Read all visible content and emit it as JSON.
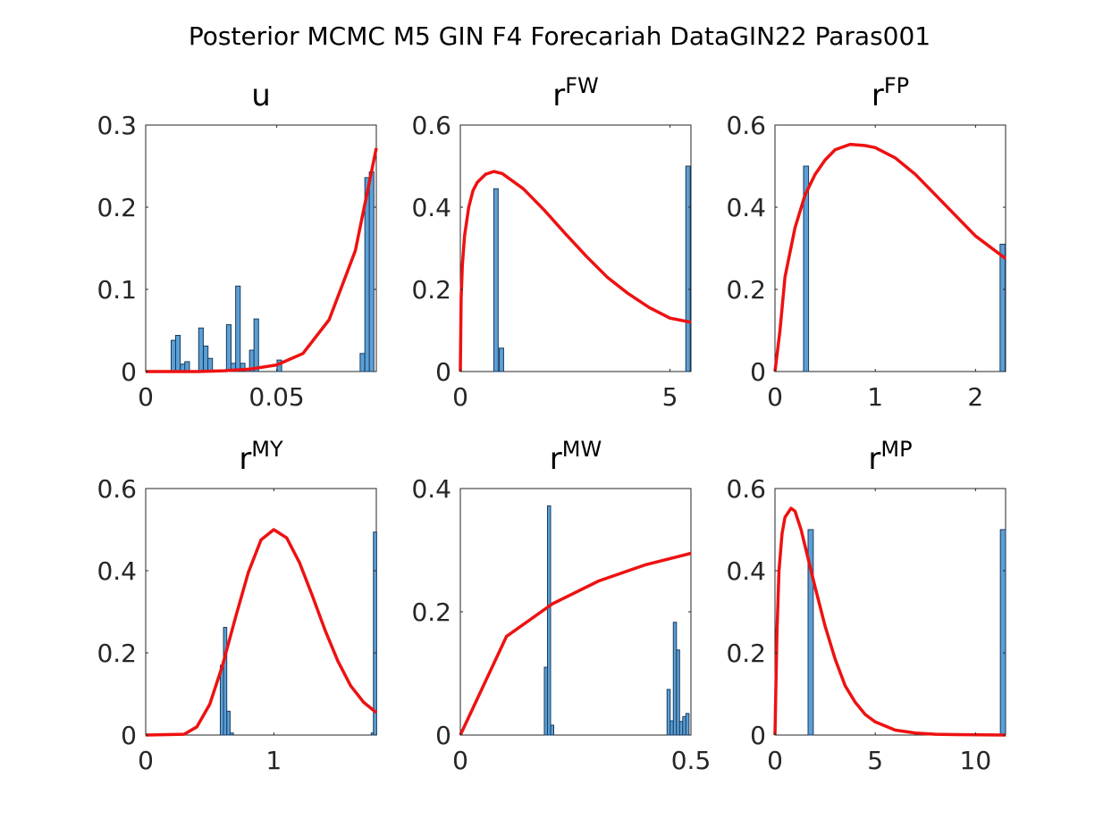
{
  "figure_title": "Posterior MCMC M5 GIN F4 Forecariah DataGIN22 Paras001",
  "colors": {
    "bars": "#5aa0d6",
    "bar_edge": "#1b3a5c",
    "curve": "#ee1111",
    "axis": "#262626"
  },
  "chart_data": [
    {
      "type": "bar",
      "title": "u",
      "title_sup": "",
      "xlim": [
        0,
        0.088
      ],
      "ylim": [
        0,
        0.3
      ],
      "xticks": [
        {
          "v": 0,
          "label": "0"
        },
        {
          "v": 0.05,
          "label": "0.05"
        }
      ],
      "yticks": [
        {
          "v": 0,
          "label": "0"
        },
        {
          "v": 0.1,
          "label": "0.1"
        },
        {
          "v": 0.2,
          "label": "0.2"
        },
        {
          "v": 0.3,
          "label": "0.3"
        }
      ],
      "bin_width": 0.00176,
      "bars": [
        {
          "x": 0.0106,
          "y": 0.038
        },
        {
          "x": 0.0123,
          "y": 0.044
        },
        {
          "x": 0.0141,
          "y": 0.009
        },
        {
          "x": 0.0158,
          "y": 0.012
        },
        {
          "x": 0.0211,
          "y": 0.053
        },
        {
          "x": 0.0229,
          "y": 0.031
        },
        {
          "x": 0.0246,
          "y": 0.016
        },
        {
          "x": 0.0317,
          "y": 0.057
        },
        {
          "x": 0.0334,
          "y": 0.01
        },
        {
          "x": 0.0352,
          "y": 0.104
        },
        {
          "x": 0.037,
          "y": 0.01
        },
        {
          "x": 0.0405,
          "y": 0.026
        },
        {
          "x": 0.0422,
          "y": 0.064
        },
        {
          "x": 0.051,
          "y": 0.014
        },
        {
          "x": 0.0827,
          "y": 0.022
        },
        {
          "x": 0.0845,
          "y": 0.236
        },
        {
          "x": 0.0862,
          "y": 0.243
        }
      ],
      "curve": [
        [
          0,
          0
        ],
        [
          0.02,
          0
        ],
        [
          0.03,
          0.001
        ],
        [
          0.04,
          0.003
        ],
        [
          0.05,
          0.008
        ],
        [
          0.06,
          0.022
        ],
        [
          0.07,
          0.063
        ],
        [
          0.08,
          0.147
        ],
        [
          0.088,
          0.272
        ]
      ]
    },
    {
      "type": "bar",
      "title": "r",
      "title_sup": "FW",
      "xlim": [
        0,
        5.5
      ],
      "ylim": [
        0,
        0.6
      ],
      "xticks": [
        {
          "v": 0,
          "label": "0"
        },
        {
          "v": 5,
          "label": "5"
        }
      ],
      "yticks": [
        {
          "v": 0,
          "label": "0"
        },
        {
          "v": 0.2,
          "label": "0.2"
        },
        {
          "v": 0.4,
          "label": "0.4"
        },
        {
          "v": 0.6,
          "label": "0.6"
        }
      ],
      "bin_width": 0.105,
      "bars": [
        {
          "x": 0.85,
          "y": 0.445
        },
        {
          "x": 0.98,
          "y": 0.057
        },
        {
          "x": 5.43,
          "y": 0.5
        }
      ],
      "curve": [
        [
          0,
          0
        ],
        [
          0.02,
          0.18
        ],
        [
          0.05,
          0.26
        ],
        [
          0.1,
          0.33
        ],
        [
          0.2,
          0.4
        ],
        [
          0.3,
          0.44
        ],
        [
          0.4,
          0.46
        ],
        [
          0.6,
          0.48
        ],
        [
          0.8,
          0.487
        ],
        [
          1.0,
          0.482
        ],
        [
          1.5,
          0.445
        ],
        [
          2.0,
          0.393
        ],
        [
          2.5,
          0.336
        ],
        [
          3.0,
          0.281
        ],
        [
          3.5,
          0.23
        ],
        [
          4.0,
          0.19
        ],
        [
          4.5,
          0.156
        ],
        [
          5.0,
          0.13
        ],
        [
          5.5,
          0.12
        ]
      ]
    },
    {
      "type": "bar",
      "title": "r",
      "title_sup": "FP",
      "xlim": [
        0,
        2.3
      ],
      "ylim": [
        0,
        0.6
      ],
      "xticks": [
        {
          "v": 0,
          "label": "0"
        },
        {
          "v": 1,
          "label": "1"
        },
        {
          "v": 2,
          "label": "2"
        }
      ],
      "yticks": [
        {
          "v": 0,
          "label": "0"
        },
        {
          "v": 0.2,
          "label": "0.2"
        },
        {
          "v": 0.4,
          "label": "0.4"
        },
        {
          "v": 0.6,
          "label": "0.6"
        }
      ],
      "bin_width": 0.05,
      "bars": [
        {
          "x": 0.31,
          "y": 0.5
        },
        {
          "x": 2.27,
          "y": 0.31
        }
      ],
      "curve": [
        [
          0,
          0
        ],
        [
          0.05,
          0.1
        ],
        [
          0.1,
          0.23
        ],
        [
          0.2,
          0.35
        ],
        [
          0.3,
          0.43
        ],
        [
          0.4,
          0.48
        ],
        [
          0.5,
          0.515
        ],
        [
          0.6,
          0.54
        ],
        [
          0.75,
          0.553
        ],
        [
          0.9,
          0.55
        ],
        [
          1.0,
          0.545
        ],
        [
          1.2,
          0.52
        ],
        [
          1.4,
          0.48
        ],
        [
          1.6,
          0.43
        ],
        [
          1.8,
          0.38
        ],
        [
          2.0,
          0.33
        ],
        [
          2.3,
          0.275
        ]
      ]
    },
    {
      "type": "bar",
      "title": "r",
      "title_sup": "MY",
      "xlim": [
        0,
        1.8
      ],
      "ylim": [
        0,
        0.6
      ],
      "xticks": [
        {
          "v": 0,
          "label": "0"
        },
        {
          "v": 1,
          "label": "1"
        }
      ],
      "yticks": [
        {
          "v": 0,
          "label": "0"
        },
        {
          "v": 0.2,
          "label": "0.2"
        },
        {
          "v": 0.4,
          "label": "0.4"
        },
        {
          "v": 0.6,
          "label": "0.6"
        }
      ],
      "bin_width": 0.0255,
      "bars": [
        {
          "x": 0.595,
          "y": 0.17
        },
        {
          "x": 0.62,
          "y": 0.262
        },
        {
          "x": 0.646,
          "y": 0.058
        },
        {
          "x": 0.672,
          "y": 0.005
        },
        {
          "x": 1.773,
          "y": 0.005
        },
        {
          "x": 1.79,
          "y": 0.494
        }
      ],
      "curve": [
        [
          0,
          0
        ],
        [
          0.3,
          0.002
        ],
        [
          0.4,
          0.02
        ],
        [
          0.5,
          0.075
        ],
        [
          0.6,
          0.17
        ],
        [
          0.7,
          0.285
        ],
        [
          0.8,
          0.395
        ],
        [
          0.9,
          0.475
        ],
        [
          1.0,
          0.5
        ],
        [
          1.1,
          0.48
        ],
        [
          1.2,
          0.42
        ],
        [
          1.3,
          0.34
        ],
        [
          1.4,
          0.255
        ],
        [
          1.5,
          0.18
        ],
        [
          1.6,
          0.12
        ],
        [
          1.7,
          0.08
        ],
        [
          1.8,
          0.055
        ]
      ]
    },
    {
      "type": "bar",
      "title": "r",
      "title_sup": "MW",
      "xlim": [
        0,
        0.5
      ],
      "ylim": [
        0,
        0.4
      ],
      "xticks": [
        {
          "v": 0,
          "label": "0"
        },
        {
          "v": 0.5,
          "label": "0.5"
        }
      ],
      "yticks": [
        {
          "v": 0,
          "label": "0"
        },
        {
          "v": 0.2,
          "label": "0.2"
        },
        {
          "v": 0.4,
          "label": "0.4"
        }
      ],
      "bin_width": 0.0068,
      "bars": [
        {
          "x": 0.1855,
          "y": 0.11
        },
        {
          "x": 0.1923,
          "y": 0.372
        },
        {
          "x": 0.1991,
          "y": 0.016
        },
        {
          "x": 0.4516,
          "y": 0.074
        },
        {
          "x": 0.4584,
          "y": 0.023
        },
        {
          "x": 0.4652,
          "y": 0.183
        },
        {
          "x": 0.472,
          "y": 0.138
        },
        {
          "x": 0.4788,
          "y": 0.022
        },
        {
          "x": 0.4856,
          "y": 0.03
        },
        {
          "x": 0.4924,
          "y": 0.035
        }
      ],
      "curve": [
        [
          0,
          0
        ],
        [
          0.1,
          0.16
        ],
        [
          0.2,
          0.213
        ],
        [
          0.3,
          0.25
        ],
        [
          0.4,
          0.276
        ],
        [
          0.5,
          0.295
        ]
      ]
    },
    {
      "type": "bar",
      "title": "r",
      "title_sup": "MP",
      "xlim": [
        0,
        11.5
      ],
      "ylim": [
        0,
        0.6
      ],
      "xticks": [
        {
          "v": 0,
          "label": "0"
        },
        {
          "v": 5,
          "label": "5"
        },
        {
          "v": 10,
          "label": "10"
        }
      ],
      "yticks": [
        {
          "v": 0,
          "label": "0"
        },
        {
          "v": 0.2,
          "label": "0.2"
        },
        {
          "v": 0.4,
          "label": "0.4"
        },
        {
          "v": 0.6,
          "label": "0.6"
        }
      ],
      "bin_width": 0.26,
      "bars": [
        {
          "x": 1.78,
          "y": 0.5
        },
        {
          "x": 11.37,
          "y": 0.5
        }
      ],
      "curve": [
        [
          0,
          0
        ],
        [
          0.1,
          0.25
        ],
        [
          0.2,
          0.4
        ],
        [
          0.35,
          0.49
        ],
        [
          0.5,
          0.53
        ],
        [
          0.8,
          0.552
        ],
        [
          1.0,
          0.545
        ],
        [
          1.3,
          0.5
        ],
        [
          1.6,
          0.44
        ],
        [
          2.0,
          0.36
        ],
        [
          2.5,
          0.265
        ],
        [
          3.0,
          0.185
        ],
        [
          3.5,
          0.12
        ],
        [
          4.0,
          0.08
        ],
        [
          4.5,
          0.05
        ],
        [
          5.0,
          0.032
        ],
        [
          6.0,
          0.012
        ],
        [
          7.0,
          0.005
        ],
        [
          8.0,
          0.002
        ],
        [
          9.0,
          0.001
        ],
        [
          11.5,
          0
        ]
      ]
    }
  ]
}
